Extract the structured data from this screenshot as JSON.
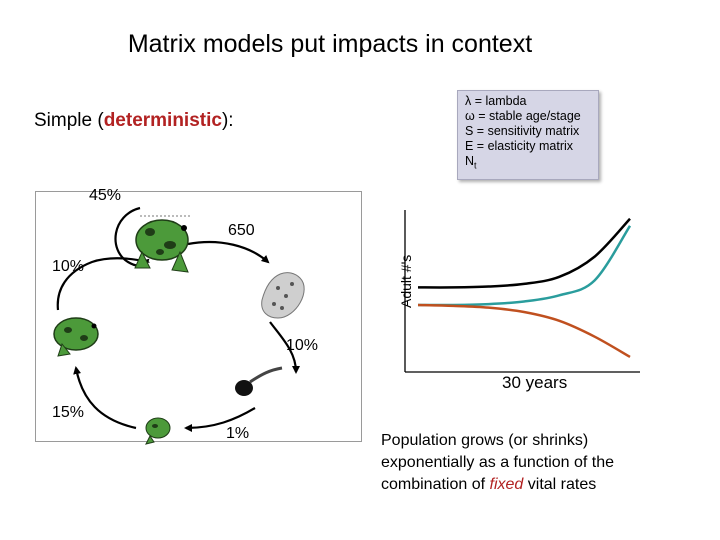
{
  "title": "Matrix models put impacts in context",
  "subtitle": {
    "prefix": "Simple (",
    "highlight": "deterministic",
    "suffix": "):"
  },
  "legend_box": {
    "lines": [
      "λ = lambda",
      "ω = stable age/stage",
      "S = sensitivity matrix",
      "E = elasticity matrix"
    ],
    "nt_base": "N",
    "nt_sub": "t"
  },
  "lifecycle": {
    "adult_survival": "45%",
    "fecundity": "650",
    "egg_survival": "10%",
    "tadpole_survival": "1%",
    "juvenile_survival": "15%",
    "subadult_survival": "10%"
  },
  "chart": {
    "y_label": "Adult #'s",
    "x_label": "30 years"
  },
  "chart_data": {
    "type": "line",
    "xlabel": "30 years",
    "ylabel": "Adult #'s",
    "grid": false,
    "x": [
      0,
      5,
      10,
      15,
      20,
      25,
      30
    ],
    "series": [
      {
        "color": "#000000",
        "values": [
          0.2,
          0.2,
          0.21,
          0.24,
          0.32,
          0.55,
          0.98
        ]
      },
      {
        "color": "#2a9d9d",
        "values": [
          0.0,
          0.0,
          0.01,
          0.04,
          0.11,
          0.28,
          0.9
        ]
      },
      {
        "color": "#c0501f",
        "values": [
          0.0,
          -0.01,
          -0.03,
          -0.08,
          -0.18,
          -0.36,
          -0.59
        ]
      }
    ]
  },
  "caption": {
    "prefix": "Population grows (or shrinks) exponentially as a function of the combination of ",
    "emphasis": "fixed",
    "suffix": " vital rates"
  }
}
